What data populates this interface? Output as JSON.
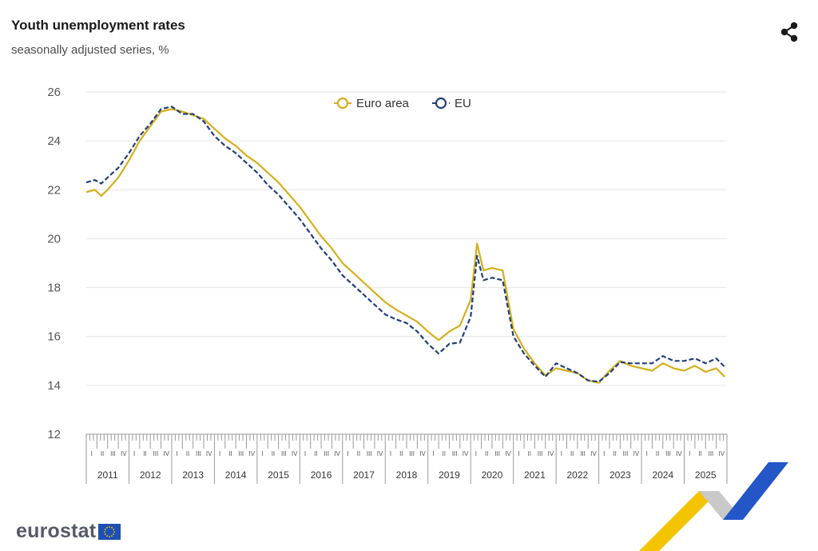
{
  "title": "Youth unemployment rates",
  "subtitle": "seasonally adjusted series, %",
  "logo": {
    "text": "eurostat"
  },
  "icons": {
    "share": "share-icon",
    "flag": "eu-flag-icon"
  },
  "colors": {
    "euro_area": "#d4af1c",
    "eu": "#223f7a",
    "grid": "#e6e6e6",
    "axis": "#9a9a9a",
    "text": "#555555"
  },
  "chart_data": {
    "type": "line",
    "title": "Youth unemployment rates",
    "subtitle": "seasonally adjusted series, %",
    "xlabel": "",
    "ylabel": "",
    "ylim": [
      12,
      26
    ],
    "yticks": [
      12,
      14,
      16,
      18,
      20,
      22,
      24,
      26
    ],
    "years": [
      "2011",
      "2012",
      "2013",
      "2014",
      "2015",
      "2016",
      "2017",
      "2018",
      "2019",
      "2020",
      "2021",
      "2022",
      "2023",
      "2024",
      "2025"
    ],
    "quarters": [
      "I",
      "II",
      "III",
      "IV"
    ],
    "legend": {
      "position": "top-center"
    },
    "x_start": "2011-01",
    "x_end": "2025-12",
    "series": [
      {
        "name": "Euro area",
        "style": "solid",
        "x": [
          2011.0,
          2011.2,
          2011.35,
          2011.5,
          2011.75,
          2012.0,
          2012.25,
          2012.5,
          2012.75,
          2013.0,
          2013.25,
          2013.5,
          2013.75,
          2014.0,
          2014.25,
          2014.5,
          2014.75,
          2015.0,
          2015.25,
          2015.5,
          2015.75,
          2016.0,
          2016.25,
          2016.5,
          2016.75,
          2017.0,
          2017.25,
          2017.5,
          2017.75,
          2018.0,
          2018.25,
          2018.5,
          2018.75,
          2019.0,
          2019.25,
          2019.5,
          2019.75,
          2020.0,
          2020.15,
          2020.3,
          2020.5,
          2020.75,
          2021.0,
          2021.25,
          2021.5,
          2021.75,
          2022.0,
          2022.25,
          2022.5,
          2022.75,
          2023.0,
          2023.25,
          2023.5,
          2023.75,
          2024.0,
          2024.25,
          2024.5,
          2024.75,
          2025.0,
          2025.25,
          2025.5,
          2025.75,
          2025.95
        ],
        "values": [
          21.9,
          22.0,
          21.75,
          22.0,
          22.5,
          23.2,
          24.0,
          24.6,
          25.2,
          25.3,
          25.2,
          25.05,
          24.9,
          24.5,
          24.1,
          23.8,
          23.4,
          23.1,
          22.7,
          22.3,
          21.8,
          21.3,
          20.7,
          20.1,
          19.6,
          19.0,
          18.6,
          18.2,
          17.8,
          17.4,
          17.1,
          16.85,
          16.6,
          16.2,
          15.85,
          16.2,
          16.45,
          17.5,
          19.8,
          18.7,
          18.8,
          18.7,
          16.3,
          15.5,
          14.9,
          14.4,
          14.7,
          14.6,
          14.5,
          14.2,
          14.1,
          14.6,
          15.0,
          14.8,
          14.7,
          14.6,
          14.9,
          14.7,
          14.6,
          14.8,
          14.55,
          14.7,
          14.35
        ]
      },
      {
        "name": "EU",
        "style": "dashed",
        "x": [
          2011.0,
          2011.2,
          2011.35,
          2011.5,
          2011.75,
          2012.0,
          2012.25,
          2012.5,
          2012.75,
          2013.0,
          2013.25,
          2013.5,
          2013.75,
          2014.0,
          2014.25,
          2014.5,
          2014.75,
          2015.0,
          2015.25,
          2015.5,
          2015.75,
          2016.0,
          2016.25,
          2016.5,
          2016.75,
          2017.0,
          2017.25,
          2017.5,
          2017.75,
          2018.0,
          2018.25,
          2018.5,
          2018.75,
          2019.0,
          2019.25,
          2019.5,
          2019.75,
          2020.0,
          2020.15,
          2020.3,
          2020.5,
          2020.75,
          2021.0,
          2021.25,
          2021.5,
          2021.75,
          2022.0,
          2022.25,
          2022.5,
          2022.75,
          2023.0,
          2023.25,
          2023.5,
          2023.75,
          2024.0,
          2024.25,
          2024.5,
          2024.75,
          2025.0,
          2025.25,
          2025.5,
          2025.75,
          2025.95
        ],
        "values": [
          22.3,
          22.4,
          22.25,
          22.5,
          22.9,
          23.5,
          24.2,
          24.7,
          25.3,
          25.4,
          25.1,
          25.1,
          24.8,
          24.2,
          23.8,
          23.5,
          23.1,
          22.7,
          22.2,
          21.8,
          21.3,
          20.8,
          20.2,
          19.6,
          19.1,
          18.5,
          18.1,
          17.7,
          17.3,
          16.9,
          16.7,
          16.55,
          16.2,
          15.7,
          15.3,
          15.7,
          15.75,
          16.8,
          19.3,
          18.3,
          18.4,
          18.3,
          16.0,
          15.3,
          14.8,
          14.35,
          14.9,
          14.7,
          14.5,
          14.2,
          14.15,
          14.5,
          14.95,
          14.9,
          14.9,
          14.9,
          15.2,
          15.0,
          15.0,
          15.1,
          14.9,
          15.1,
          14.75
        ]
      }
    ]
  }
}
